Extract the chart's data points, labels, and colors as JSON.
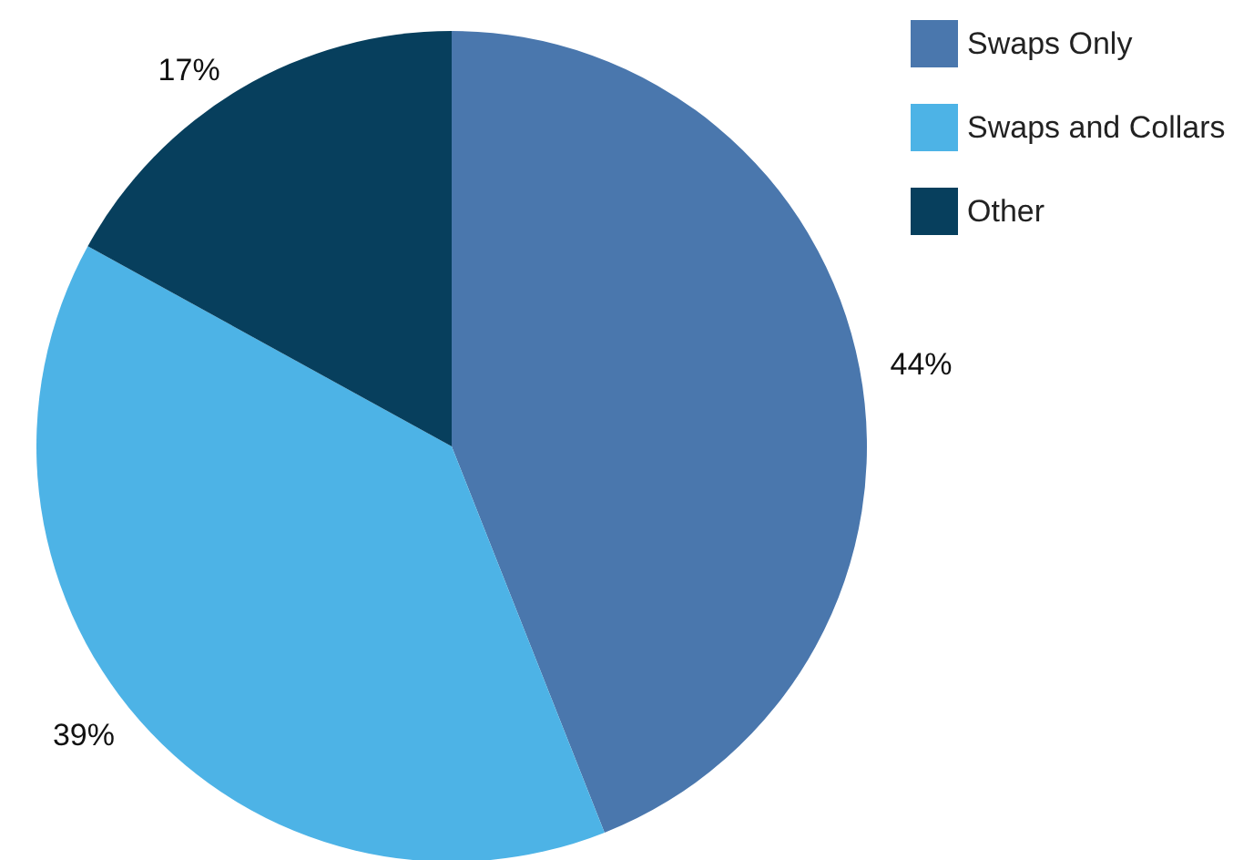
{
  "chart_data": {
    "type": "pie",
    "categories": [
      "Swaps Only",
      "Swaps and Collars",
      "Other"
    ],
    "values": [
      44,
      39,
      17
    ],
    "colors": [
      "#4a77ad",
      "#4db3e6",
      "#073f5d"
    ],
    "value_labels": [
      "44%",
      "39%",
      "17%"
    ],
    "legend": "top right"
  }
}
